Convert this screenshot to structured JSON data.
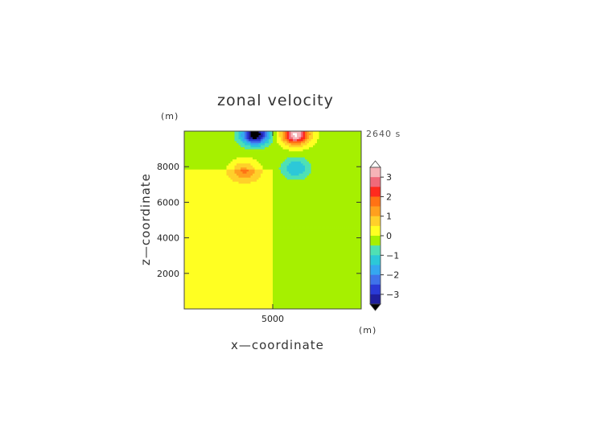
{
  "chart_data": {
    "type": "heatmap",
    "title": "zonal velocity",
    "xlabel": "x—coordinate",
    "ylabel": "z—coordinate",
    "x_unit": "(m)",
    "y_unit": "(m)",
    "time_label": "2640 s",
    "xlim": [
      0,
      10000
    ],
    "ylim": [
      0,
      10000
    ],
    "x_ticks": [
      5000
    ],
    "x_tick_labels": [
      "5000"
    ],
    "y_ticks": [
      2000,
      4000,
      6000,
      8000
    ],
    "y_tick_labels": [
      "2000",
      "4000",
      "6000",
      "8000"
    ],
    "colorbar": {
      "levels": [
        -3.5,
        -3,
        -2.5,
        -2,
        -1.5,
        -1,
        -0.5,
        0,
        0.5,
        1,
        1.5,
        2,
        2.5,
        3,
        3.5
      ],
      "colors": [
        "#1f1f9e",
        "#2a3ad6",
        "#3f73ea",
        "#35a7f0",
        "#2cc8d8",
        "#4fe0b4",
        "#a6f000",
        "#ffff22",
        "#ffd02a",
        "#ffa01e",
        "#ff7214",
        "#ff2a1e",
        "#f06a7a",
        "#f6b4b8"
      ],
      "under_color": "#000000",
      "over_color": "#ffffff",
      "tick_values": [
        -3,
        -2,
        -1,
        0,
        1,
        2,
        3
      ],
      "tick_labels": [
        "−3",
        "−2",
        "−1",
        "0",
        "1",
        "2",
        "3"
      ]
    },
    "features": [
      {
        "x": 4000,
        "z": 9800,
        "value": -3.8
      },
      {
        "x": 6300,
        "z": 9800,
        "value": 3.8
      },
      {
        "x": 3400,
        "z": 7800,
        "value": 1.3
      },
      {
        "x": 6300,
        "z": 7900,
        "value": -1.3
      }
    ],
    "background": {
      "left_of": 5000,
      "left_value": 0.3,
      "right_value": -0.2
    }
  }
}
